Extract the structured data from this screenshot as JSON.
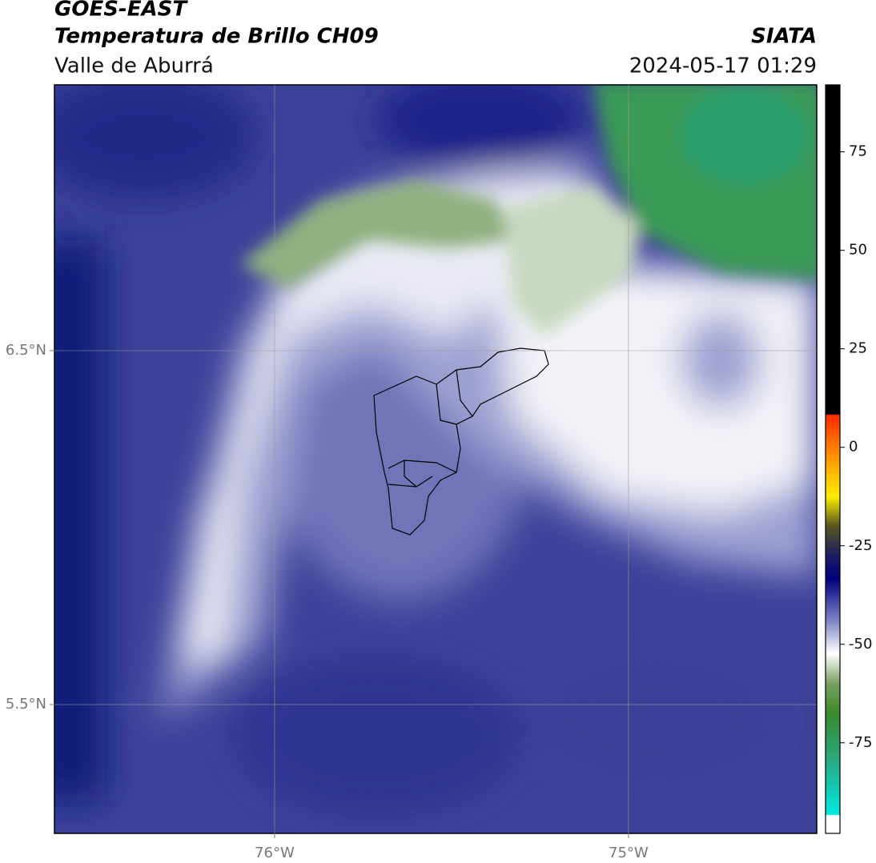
{
  "header": {
    "title": "GOES-EAST",
    "subtitle": "Temperatura de Brillo CH09",
    "region": "Valle de Aburrá",
    "agency": "SIATA",
    "timestamp": "2024-05-17 01:29"
  },
  "map": {
    "lonlim": [
      -76.622,
      -74.468
    ],
    "latlim": [
      5.136,
      7.251
    ],
    "lon_ticks": [
      {
        "value": -76,
        "label": "76°W"
      },
      {
        "value": -75,
        "label": "75°W"
      }
    ],
    "lat_ticks": [
      {
        "value": 6.5,
        "label": "6.5°N"
      },
      {
        "value": 5.5,
        "label": "5.5°N"
      }
    ]
  },
  "colorbar": {
    "range": [
      -98,
      92
    ],
    "ticks": [
      75,
      50,
      25,
      0,
      -25,
      -50,
      -75
    ]
  }
}
